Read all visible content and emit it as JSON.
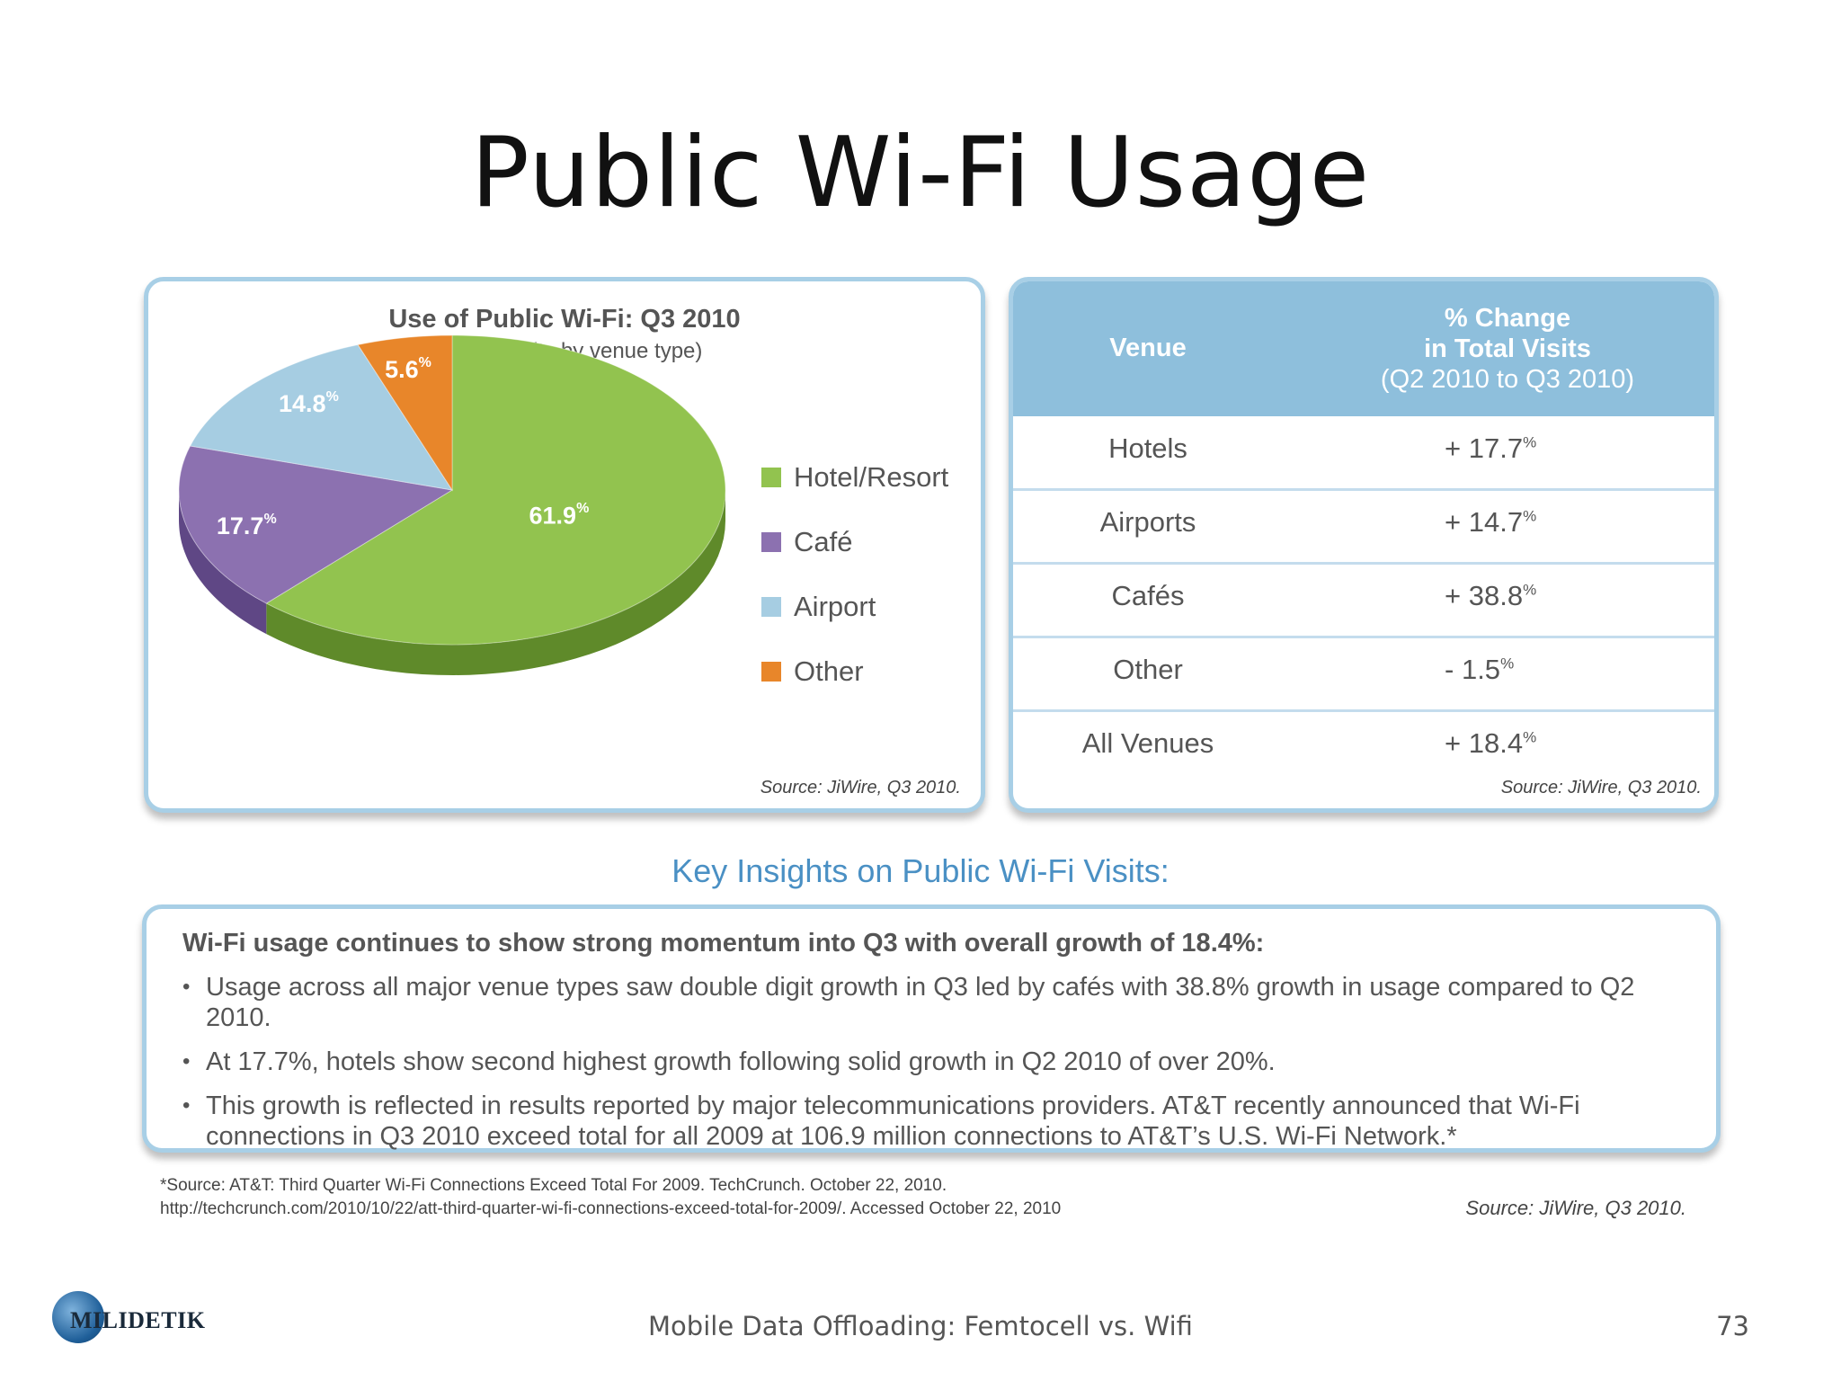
{
  "slide": {
    "title": "Public Wi-Fi Usage",
    "footer": "Mobile Data Offloading: Femtocell vs. Wifi",
    "page_number": "73",
    "logo_text": "MILIDETIK"
  },
  "pie_panel": {
    "source": "Source: JiWire, Q3 2010."
  },
  "table_panel": {
    "header_venue": "Venue",
    "header_change_line1": "% Change",
    "header_change_line2": "in Total Visits",
    "header_change_line3": "(Q2 2010 to Q3 2010)",
    "source": "Source: JiWire, Q3 2010.",
    "rows": [
      {
        "venue": "Hotels",
        "sign": "+",
        "value": "17.7",
        "unit": "%"
      },
      {
        "venue": "Airports",
        "sign": "+",
        "value": "14.7",
        "unit": "%"
      },
      {
        "venue": "Cafés",
        "sign": "+",
        "value": "38.8",
        "unit": "%"
      },
      {
        "venue": "Other",
        "sign": "-",
        "value": "1.5",
        "unit": "%"
      },
      {
        "venue": "All Venues",
        "sign": "+",
        "value": "18.4",
        "unit": "%"
      }
    ]
  },
  "insights": {
    "heading": "Key Insights on Public Wi-Fi Visits:",
    "lead": "Wi-Fi usage continues to show strong momentum into Q3 with overall growth of 18.4%:",
    "bullets": [
      "Usage across all major venue types saw double digit growth in Q3 led by cafés with 38.8% growth in usage compared to Q2 2010.",
      "At 17.7%, hotels show second highest growth following solid growth in Q2 2010 of over 20%.",
      "This growth is reflected in results reported by major telecommunications providers. AT&T recently announced that Wi-Fi connections in Q3 2010 exceed total for all 2009 at 106.9 million connections to AT&T’s  U.S. Wi-Fi Network.*"
    ]
  },
  "footnote": {
    "line1": "*Source: AT&T: Third Quarter Wi-Fi Connections Exceed Total For 2009. TechCrunch. October 22, 2010.",
    "line2": "http://techcrunch.com/2010/10/22/att-third-quarter-wi-fi-connections-exceed-total-for-2009/. Accessed October 22, 2010",
    "source": "Source: JiWire, Q3 2010."
  },
  "chart_data": [
    {
      "type": "pie",
      "title": "Use of Public Wi-Fi: Q3 2010",
      "subtitle": "(% user visits by venue type)",
      "unit": "%",
      "categories": [
        "Hotel/Resort",
        "Café",
        "Airport",
        "Other"
      ],
      "values": [
        61.9,
        17.7,
        14.8,
        5.6
      ],
      "colors": [
        "#92c34f",
        "#8c71b0",
        "#a6cde2",
        "#e8862a"
      ],
      "side_colors": [
        "#5f8a2a",
        "#5f4785",
        "#7ea8c0",
        "#b5611a"
      ],
      "legend": "right",
      "style": "3d"
    },
    {
      "type": "table",
      "columns": [
        "Venue",
        "% Change in Total Visits (Q2 2010 to Q3 2010)"
      ],
      "rows": [
        [
          "Hotels",
          17.7
        ],
        [
          "Airports",
          14.7
        ],
        [
          "Cafés",
          38.8
        ],
        [
          "Other",
          -1.5
        ],
        [
          "All Venues",
          18.4
        ]
      ]
    }
  ]
}
